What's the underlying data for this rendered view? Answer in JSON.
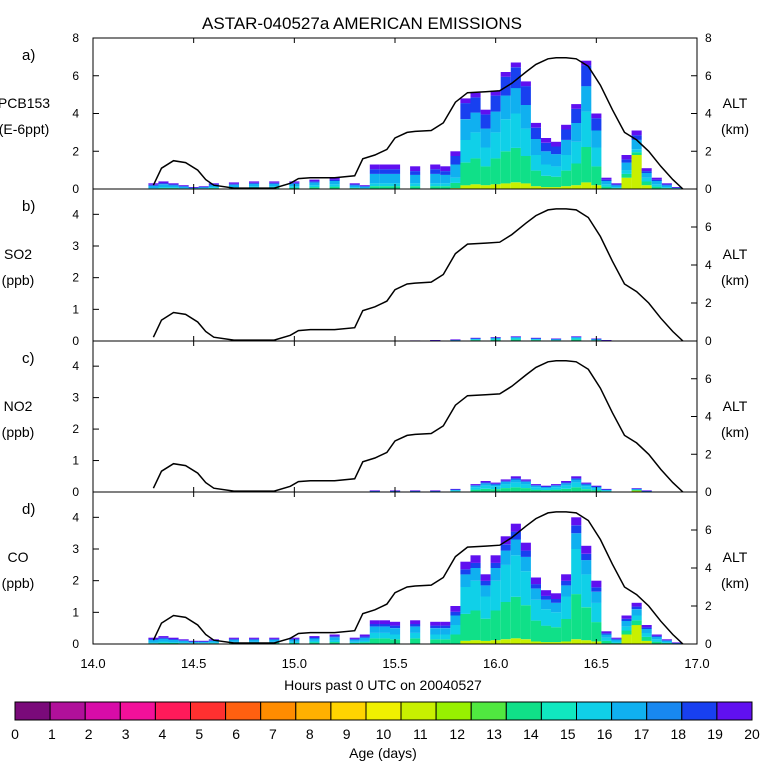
{
  "title": "ASTAR-040527a AMERICAN EMISSIONS",
  "xlabel": "Hours past 0 UTC on 20040527",
  "x_ticks": [
    "14.0",
    "14.5",
    "15.0",
    "15.5",
    "16.0",
    "16.5",
    "17.0"
  ],
  "colorbar": {
    "label": "Age (days)",
    "ticks": [
      "0",
      "1",
      "2",
      "3",
      "4",
      "5",
      "6",
      "7",
      "8",
      "9",
      "10",
      "11",
      "12",
      "13",
      "14",
      "15",
      "16",
      "17",
      "18",
      "19",
      "20"
    ],
    "colors": [
      "#7a0a7a",
      "#b0109a",
      "#d80ca8",
      "#f2109a",
      "#ff1a5a",
      "#ff3030",
      "#ff6010",
      "#ff8c00",
      "#ffb000",
      "#ffd400",
      "#f0f000",
      "#c8f000",
      "#98f000",
      "#50e840",
      "#10e088",
      "#10e8c0",
      "#10d0e8",
      "#10b0f0",
      "#1888f0",
      "#1840f0",
      "#6010f0"
    ]
  },
  "chart_data": [
    {
      "type": "area",
      "panel": "a)",
      "ylabel_lines": [
        "PCB153",
        "(E-6ppt)"
      ],
      "y2label_lines": [
        "ALT",
        "(km)"
      ],
      "y_ticks": [
        "0",
        "2",
        "4",
        "6",
        "8"
      ],
      "ylim": [
        0,
        8
      ],
      "y2_ticks": [
        "0",
        "2",
        "4",
        "6",
        "8"
      ],
      "y2lim": [
        0,
        8
      ],
      "xlim": [
        14.0,
        17.0
      ],
      "tracer": {
        "x": [
          14.3,
          14.35,
          14.4,
          14.45,
          14.5,
          14.55,
          14.6,
          14.7,
          14.8,
          14.9,
          15.0,
          15.1,
          15.2,
          15.3,
          15.35,
          15.4,
          15.45,
          15.5,
          15.6,
          15.7,
          15.75,
          15.8,
          15.85,
          15.9,
          15.95,
          16.0,
          16.05,
          16.1,
          16.15,
          16.2,
          16.25,
          16.3,
          16.35,
          16.4,
          16.45,
          16.5,
          16.55,
          16.6,
          16.65,
          16.7,
          16.75,
          16.8,
          16.85,
          16.9
        ],
        "total": [
          0.3,
          0.4,
          0.3,
          0.2,
          0.1,
          0.15,
          0.3,
          0.35,
          0.4,
          0.4,
          0.4,
          0.5,
          0.6,
          0.3,
          0.2,
          1.3,
          1.3,
          1.3,
          1.2,
          1.3,
          1.2,
          2.0,
          4.8,
          5.1,
          4.2,
          5.2,
          6.2,
          6.7,
          5.7,
          3.5,
          2.7,
          2.5,
          3.4,
          4.5,
          6.8,
          4.0,
          0.6,
          0.3,
          1.8,
          3.1,
          1.1,
          0.6,
          0.3,
          0.1
        ],
        "young": [
          0.05,
          0.1,
          0.1,
          0.05,
          0.05,
          0.05,
          0.1,
          0.1,
          0.15,
          0.15,
          0.15,
          0.2,
          0.25,
          0.1,
          0.05,
          0.3,
          0.3,
          0.3,
          0.3,
          0.3,
          0.3,
          0.6,
          2.6,
          3.0,
          2.2,
          3.0,
          3.7,
          4.0,
          3.2,
          1.8,
          1.3,
          1.2,
          1.8,
          2.5,
          4.1,
          2.2,
          0.25,
          0.1,
          1.0,
          2.1,
          0.6,
          0.25,
          0.1,
          0.05
        ],
        "fresh": [
          0,
          0,
          0,
          0,
          0,
          0,
          0,
          0,
          0,
          0,
          0,
          0,
          0,
          0,
          0,
          0,
          0,
          0,
          0,
          0,
          0,
          0.05,
          0.2,
          0.25,
          0.2,
          0.25,
          0.3,
          0.35,
          0.3,
          0.15,
          0.1,
          0.1,
          0.15,
          0.2,
          0.35,
          0.2,
          0,
          0,
          0.6,
          1.8,
          0.2,
          0,
          0,
          0
        ]
      },
      "altitude_km": {
        "x": [
          14.3,
          14.34,
          14.4,
          14.46,
          14.52,
          14.56,
          14.6,
          14.7,
          14.8,
          14.9,
          14.98,
          15.02,
          15.08,
          15.2,
          15.3,
          15.34,
          15.4,
          15.46,
          15.5,
          15.56,
          15.6,
          15.68,
          15.74,
          15.8,
          15.86,
          15.95,
          16.02,
          16.08,
          16.15,
          16.2,
          16.26,
          16.3,
          16.35,
          16.4,
          16.46,
          16.52,
          16.58,
          16.64,
          16.7,
          16.76,
          16.82,
          16.88,
          16.93
        ],
        "alt": [
          0.2,
          1.1,
          1.5,
          1.4,
          1.0,
          0.5,
          0.2,
          0.05,
          0.05,
          0.05,
          0.3,
          0.55,
          0.6,
          0.6,
          0.7,
          1.6,
          1.8,
          2.1,
          2.7,
          3.0,
          3.05,
          3.1,
          3.5,
          4.6,
          5.1,
          5.15,
          5.2,
          5.6,
          6.2,
          6.6,
          6.9,
          6.95,
          6.95,
          6.9,
          6.5,
          5.5,
          4.2,
          3.0,
          2.6,
          2.0,
          1.2,
          0.5,
          0.0
        ]
      }
    },
    {
      "type": "area",
      "panel": "b)",
      "ylabel_lines": [
        "SO2",
        "(ppb)"
      ],
      "y2label_lines": [
        "ALT",
        "(km)"
      ],
      "y_ticks": [
        "0",
        "1",
        "2",
        "3",
        "4"
      ],
      "ylim": [
        0,
        4.8
      ],
      "y2_ticks": [
        "0",
        "2",
        "4",
        "6"
      ],
      "y2lim": [
        0,
        8
      ],
      "xlim": [
        14.0,
        17.0
      ],
      "tracer": {
        "x": [
          15.6,
          15.7,
          15.8,
          15.9,
          16.0,
          16.1,
          16.2,
          16.3,
          16.4,
          16.5,
          16.55
        ],
        "total": [
          0.02,
          0.03,
          0.05,
          0.1,
          0.12,
          0.15,
          0.1,
          0.08,
          0.15,
          0.08,
          0.03
        ],
        "young": [
          0.01,
          0.02,
          0.03,
          0.06,
          0.08,
          0.1,
          0.06,
          0.05,
          0.1,
          0.05,
          0.02
        ],
        "fresh": [
          0,
          0,
          0,
          0,
          0,
          0,
          0,
          0,
          0,
          0,
          0
        ]
      },
      "altitude_km": {
        "x": [
          14.3,
          14.34,
          14.4,
          14.46,
          14.52,
          14.56,
          14.6,
          14.7,
          14.8,
          14.9,
          14.98,
          15.02,
          15.08,
          15.2,
          15.3,
          15.34,
          15.4,
          15.46,
          15.5,
          15.56,
          15.6,
          15.68,
          15.74,
          15.8,
          15.86,
          15.95,
          16.02,
          16.08,
          16.15,
          16.2,
          16.26,
          16.3,
          16.35,
          16.4,
          16.46,
          16.52,
          16.58,
          16.64,
          16.7,
          16.76,
          16.82,
          16.88,
          16.93
        ],
        "alt": [
          0.2,
          1.1,
          1.5,
          1.4,
          1.0,
          0.5,
          0.2,
          0.05,
          0.05,
          0.05,
          0.3,
          0.55,
          0.6,
          0.6,
          0.7,
          1.6,
          1.8,
          2.1,
          2.7,
          3.0,
          3.05,
          3.1,
          3.5,
          4.6,
          5.1,
          5.15,
          5.2,
          5.6,
          6.2,
          6.6,
          6.9,
          6.95,
          6.95,
          6.9,
          6.5,
          5.5,
          4.2,
          3.0,
          2.6,
          2.0,
          1.2,
          0.5,
          0.0
        ]
      }
    },
    {
      "type": "area",
      "panel": "c)",
      "ylabel_lines": [
        "NO2",
        "(ppb)"
      ],
      "y2label_lines": [
        "ALT",
        "(km)"
      ],
      "y_ticks": [
        "0",
        "1",
        "2",
        "3",
        "4"
      ],
      "ylim": [
        0,
        4.8
      ],
      "y2_ticks": [
        "0",
        "2",
        "4",
        "6"
      ],
      "y2lim": [
        0,
        8
      ],
      "xlim": [
        14.0,
        17.0
      ],
      "tracer": {
        "x": [
          15.4,
          15.5,
          15.6,
          15.7,
          15.8,
          15.9,
          15.95,
          16.0,
          16.05,
          16.1,
          16.15,
          16.2,
          16.25,
          16.3,
          16.35,
          16.4,
          16.45,
          16.5,
          16.55,
          16.7,
          16.75
        ],
        "total": [
          0.05,
          0.05,
          0.05,
          0.05,
          0.1,
          0.25,
          0.35,
          0.3,
          0.4,
          0.5,
          0.4,
          0.25,
          0.2,
          0.25,
          0.35,
          0.5,
          0.3,
          0.2,
          0.1,
          0.12,
          0.05
        ],
        "young": [
          0.02,
          0.02,
          0.02,
          0.02,
          0.05,
          0.15,
          0.2,
          0.18,
          0.25,
          0.3,
          0.25,
          0.15,
          0.12,
          0.15,
          0.2,
          0.3,
          0.18,
          0.12,
          0.05,
          0.08,
          0.02
        ],
        "fresh": [
          0,
          0,
          0,
          0,
          0,
          0,
          0,
          0,
          0,
          0,
          0,
          0,
          0,
          0,
          0,
          0,
          0,
          0,
          0,
          0.05,
          0
        ]
      },
      "altitude_km": {
        "x": [
          14.3,
          14.34,
          14.4,
          14.46,
          14.52,
          14.56,
          14.6,
          14.7,
          14.8,
          14.9,
          14.98,
          15.02,
          15.08,
          15.2,
          15.3,
          15.34,
          15.4,
          15.46,
          15.5,
          15.56,
          15.6,
          15.68,
          15.74,
          15.8,
          15.86,
          15.95,
          16.02,
          16.08,
          16.15,
          16.2,
          16.26,
          16.3,
          16.35,
          16.4,
          16.46,
          16.52,
          16.58,
          16.64,
          16.7,
          16.76,
          16.82,
          16.88,
          16.93
        ],
        "alt": [
          0.2,
          1.1,
          1.5,
          1.4,
          1.0,
          0.5,
          0.2,
          0.05,
          0.05,
          0.05,
          0.3,
          0.55,
          0.6,
          0.6,
          0.7,
          1.6,
          1.8,
          2.1,
          2.7,
          3.0,
          3.05,
          3.1,
          3.5,
          4.6,
          5.1,
          5.15,
          5.2,
          5.6,
          6.2,
          6.6,
          6.9,
          6.95,
          6.95,
          6.9,
          6.5,
          5.5,
          4.2,
          3.0,
          2.6,
          2.0,
          1.2,
          0.5,
          0.0
        ]
      }
    },
    {
      "type": "area",
      "panel": "d)",
      "ylabel_lines": [
        "CO",
        "(ppb)"
      ],
      "y2label_lines": [
        "ALT",
        "(km)"
      ],
      "y_ticks": [
        "0",
        "1",
        "2",
        "3",
        "4"
      ],
      "ylim": [
        0,
        4.8
      ],
      "y2_ticks": [
        "0",
        "2",
        "4",
        "6"
      ],
      "y2lim": [
        0,
        8
      ],
      "xlim": [
        14.0,
        17.0
      ],
      "tracer": {
        "x": [
          14.3,
          14.35,
          14.4,
          14.45,
          14.5,
          14.55,
          14.6,
          14.7,
          14.8,
          14.9,
          15.0,
          15.1,
          15.2,
          15.3,
          15.35,
          15.4,
          15.45,
          15.5,
          15.6,
          15.7,
          15.75,
          15.8,
          15.85,
          15.9,
          15.95,
          16.0,
          16.05,
          16.1,
          16.15,
          16.2,
          16.25,
          16.3,
          16.35,
          16.4,
          16.45,
          16.5,
          16.55,
          16.6,
          16.65,
          16.7,
          16.75,
          16.8,
          16.85,
          16.9
        ],
        "total": [
          0.2,
          0.25,
          0.2,
          0.15,
          0.1,
          0.1,
          0.15,
          0.2,
          0.2,
          0.2,
          0.2,
          0.25,
          0.3,
          0.2,
          0.3,
          0.75,
          0.75,
          0.7,
          0.75,
          0.7,
          0.7,
          1.2,
          2.6,
          2.8,
          2.2,
          2.8,
          3.4,
          3.8,
          3.2,
          2.1,
          1.7,
          1.6,
          2.2,
          4.0,
          3.1,
          2.0,
          0.4,
          0.2,
          0.9,
          1.3,
          0.6,
          0.3,
          0.15,
          0.05
        ],
        "young": [
          0.05,
          0.08,
          0.06,
          0.05,
          0.04,
          0.04,
          0.05,
          0.07,
          0.07,
          0.07,
          0.07,
          0.1,
          0.12,
          0.07,
          0.1,
          0.35,
          0.35,
          0.3,
          0.35,
          0.3,
          0.3,
          0.6,
          1.8,
          2.0,
          1.5,
          2.0,
          2.5,
          2.8,
          2.3,
          1.4,
          1.1,
          1.0,
          1.5,
          3.0,
          2.2,
          1.3,
          0.2,
          0.08,
          0.55,
          0.9,
          0.35,
          0.15,
          0.06,
          0.02
        ],
        "fresh": [
          0,
          0,
          0,
          0,
          0,
          0,
          0,
          0,
          0,
          0,
          0,
          0,
          0,
          0,
          0,
          0,
          0,
          0,
          0,
          0,
          0,
          0,
          0.1,
          0.12,
          0.1,
          0.12,
          0.15,
          0.18,
          0.15,
          0.08,
          0.06,
          0.06,
          0.08,
          0.15,
          0.12,
          0.08,
          0,
          0,
          0.3,
          0.6,
          0.1,
          0,
          0,
          0
        ]
      },
      "altitude_km": {
        "x": [
          14.3,
          14.34,
          14.4,
          14.46,
          14.52,
          14.56,
          14.6,
          14.7,
          14.8,
          14.9,
          14.98,
          15.02,
          15.08,
          15.2,
          15.3,
          15.34,
          15.4,
          15.46,
          15.5,
          15.56,
          15.6,
          15.68,
          15.74,
          15.8,
          15.86,
          15.95,
          16.02,
          16.08,
          16.15,
          16.2,
          16.26,
          16.3,
          16.35,
          16.4,
          16.46,
          16.52,
          16.58,
          16.64,
          16.7,
          16.76,
          16.82,
          16.88,
          16.93
        ],
        "alt": [
          0.2,
          1.1,
          1.5,
          1.4,
          1.0,
          0.5,
          0.2,
          0.05,
          0.05,
          0.05,
          0.3,
          0.55,
          0.6,
          0.6,
          0.7,
          1.6,
          1.8,
          2.1,
          2.7,
          3.0,
          3.05,
          3.1,
          3.5,
          4.6,
          5.1,
          5.15,
          5.2,
          5.6,
          6.2,
          6.6,
          6.9,
          6.95,
          6.95,
          6.9,
          6.5,
          5.5,
          4.2,
          3.0,
          2.6,
          2.0,
          1.2,
          0.5,
          0.0
        ]
      }
    }
  ]
}
